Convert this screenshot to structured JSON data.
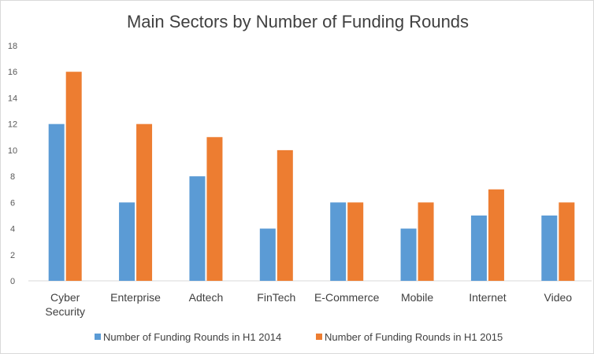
{
  "chart_data": {
    "type": "bar",
    "title": "Main Sectors by Number of Funding Rounds",
    "xlabel": "",
    "ylabel": "",
    "ylim": [
      0,
      18
    ],
    "yticks": [
      0,
      2,
      4,
      6,
      8,
      10,
      12,
      14,
      16,
      18
    ],
    "grid": false,
    "legend_position": "bottom",
    "categories": [
      [
        "Cyber",
        "Security"
      ],
      [
        "Enterprise"
      ],
      [
        "Adtech"
      ],
      [
        "FinTech"
      ],
      [
        "E-Commerce"
      ],
      [
        "Mobile"
      ],
      [
        "Internet"
      ],
      [
        "Video"
      ]
    ],
    "series": [
      {
        "name": "Number of Funding Rounds in H1 2014",
        "color": "#5b9bd5",
        "values": [
          12,
          6,
          8,
          4,
          6,
          4,
          5,
          5
        ]
      },
      {
        "name": "Number of Funding Rounds in H1 2015",
        "color": "#ed7d31",
        "values": [
          16,
          12,
          11,
          10,
          6,
          6,
          7,
          6
        ]
      }
    ]
  }
}
